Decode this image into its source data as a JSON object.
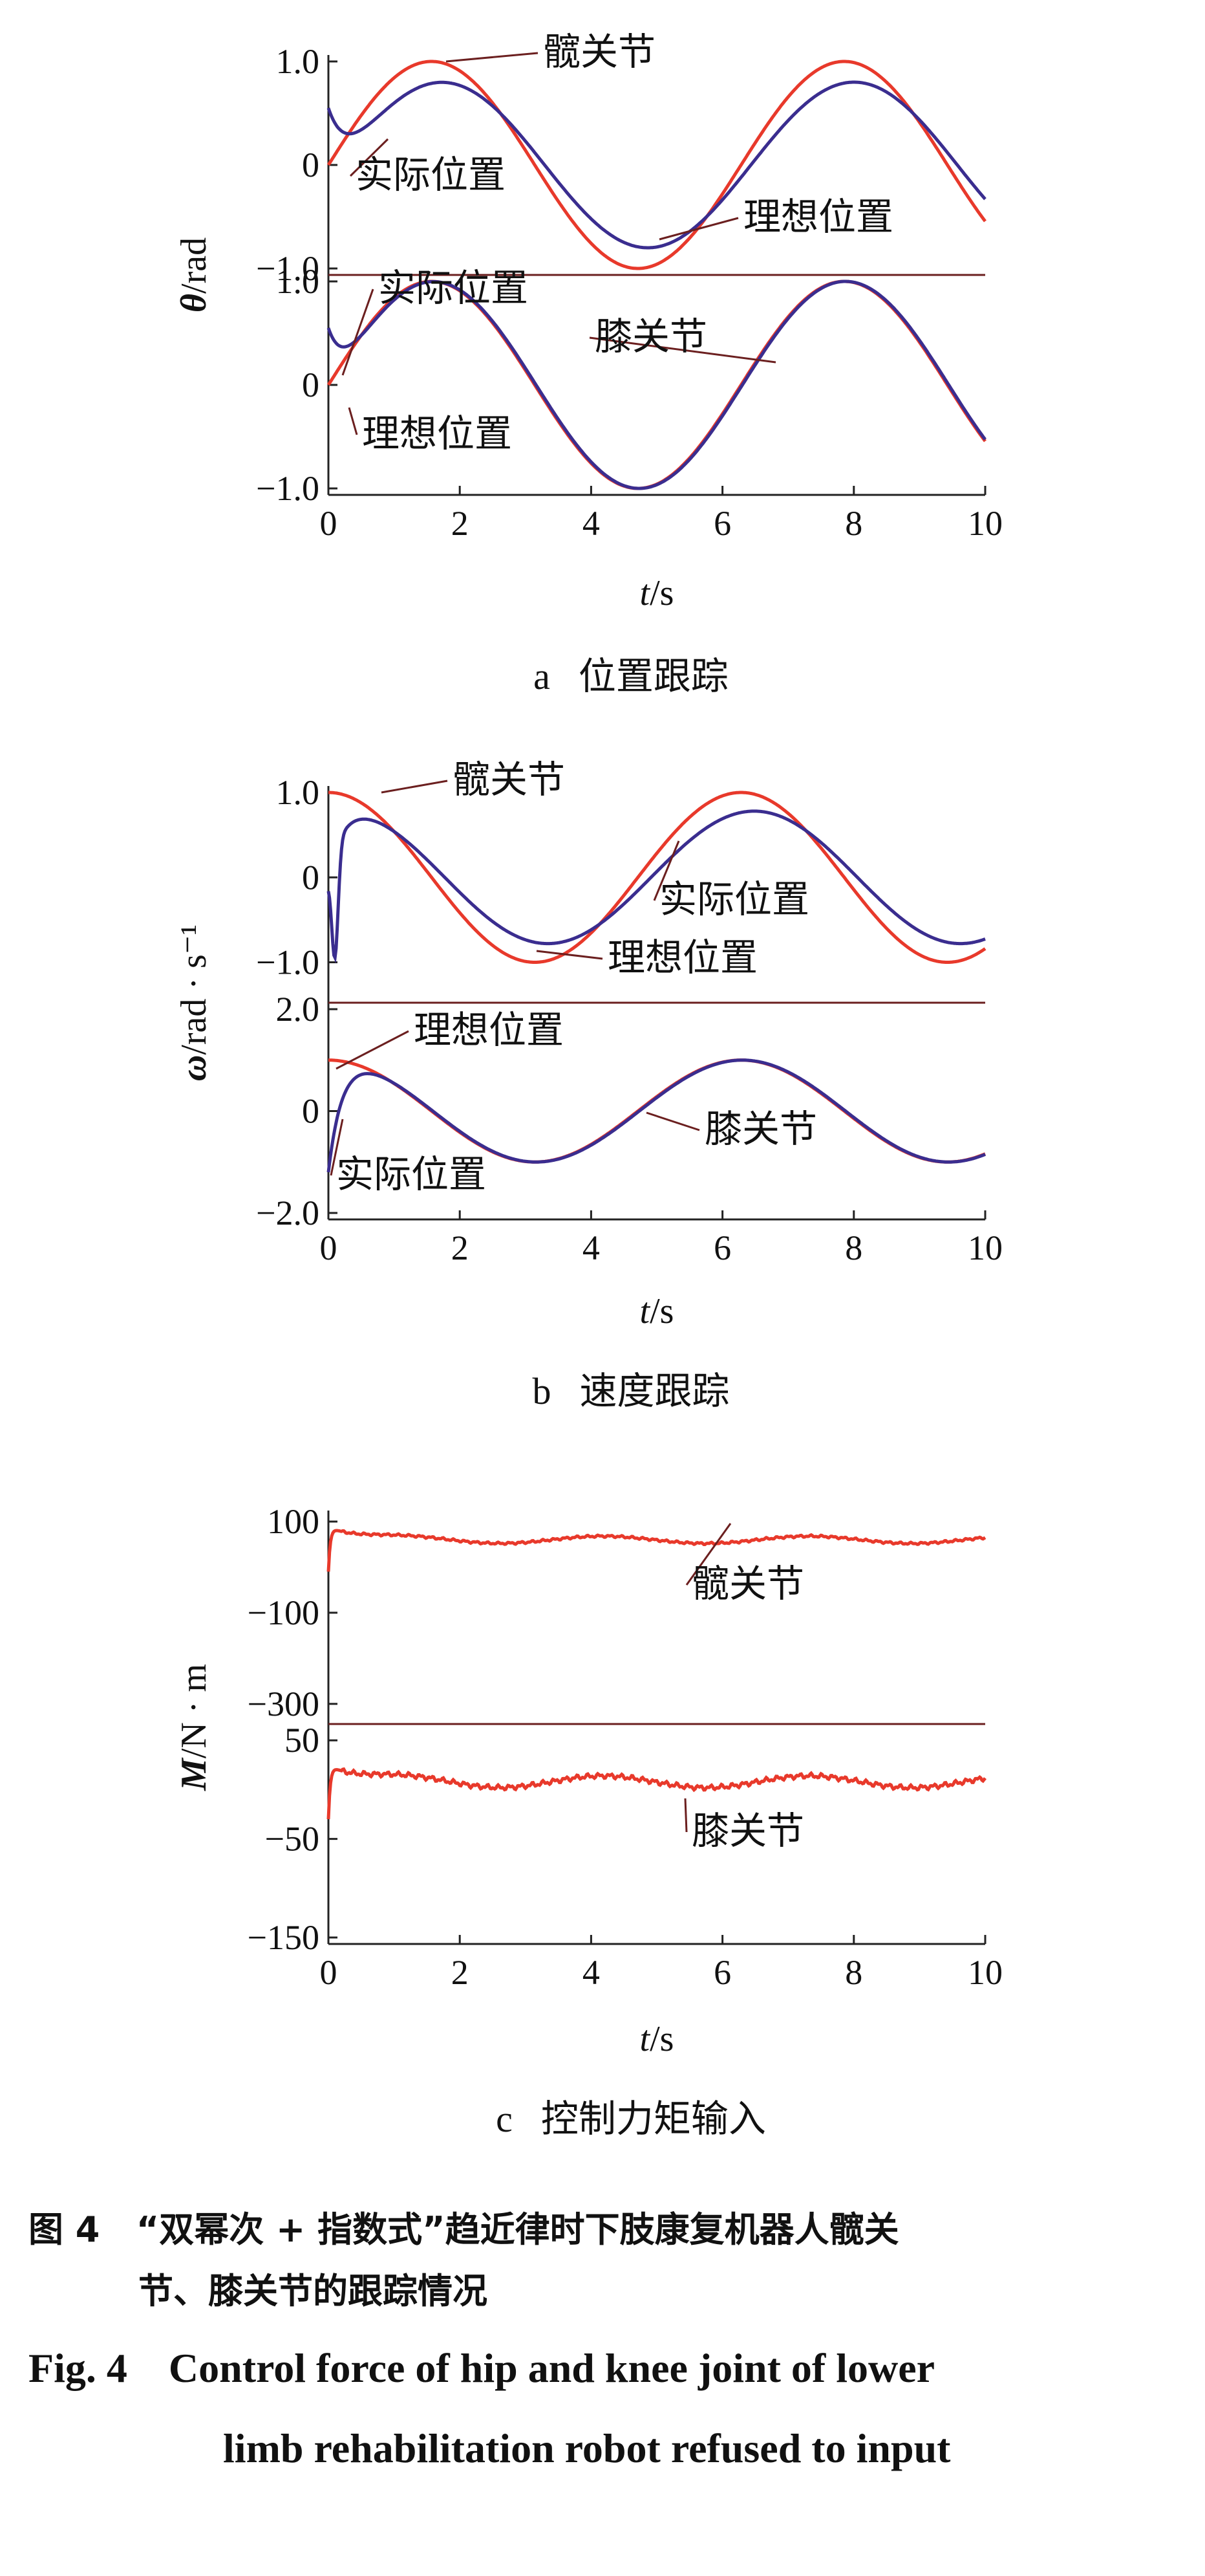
{
  "colors": {
    "ideal": "#e8392b",
    "actual": "#3a2d8f",
    "frame": "#6b1f1f",
    "text": "#111111"
  },
  "chart_data": [
    {
      "id": "a",
      "type": "line",
      "caption_letter": "a",
      "caption_text": "位置跟踪",
      "ylabel_symbol": "θ",
      "ylabel_unit": "/rad",
      "xlabel_symbol": "t",
      "xlabel_unit": "/s",
      "x_ticks": [
        "0",
        "2",
        "4",
        "6",
        "8",
        "10"
      ],
      "xlim": [
        0,
        10
      ],
      "subplots": [
        {
          "ylim": [
            -1.0,
            1.0
          ],
          "y_ticks": [
            "1.0",
            "0",
            "−1.0"
          ],
          "joint_label": "髋关节",
          "series": [
            {
              "role": "ideal",
              "label": "理想位置",
              "formula": "sin",
              "amp": 1.0,
              "offset": 0,
              "init": 0,
              "tau": 0
            },
            {
              "role": "actual",
              "label": "实际位置",
              "formula": "sin",
              "amp": 0.8,
              "offset": 0,
              "phase": 0.15,
              "init": 0.55,
              "tau": 0.35
            }
          ]
        },
        {
          "ylim": [
            -1.0,
            1.0
          ],
          "y_ticks": [
            "1.0",
            "0",
            "−1.0"
          ],
          "joint_label": "膝关节",
          "series": [
            {
              "role": "ideal",
              "label": "理想位置",
              "formula": "sin",
              "amp": 1.0,
              "offset": 0,
              "init": 0,
              "tau": 0
            },
            {
              "role": "actual",
              "label": "实际位置",
              "formula": "sin",
              "amp": 1.0,
              "offset": 0,
              "phase": 0.02,
              "init": 0.55,
              "tau": 0.3
            }
          ]
        }
      ]
    },
    {
      "id": "b",
      "type": "line",
      "caption_letter": "b",
      "caption_text": "速度跟踪",
      "ylabel_symbol": "ω",
      "ylabel_unit": "/rad · s⁻¹",
      "xlabel_symbol": "t",
      "xlabel_unit": "/s",
      "x_ticks": [
        "0",
        "2",
        "4",
        "6",
        "8",
        "10"
      ],
      "xlim": [
        0,
        10
      ],
      "subplots": [
        {
          "ylim": [
            -1.4,
            1.0
          ],
          "y_ticks": [
            "1.0",
            "0",
            "−1.0"
          ],
          "joint_label": "髋关节",
          "series": [
            {
              "role": "ideal",
              "label": "理想位置",
              "formula": "cos",
              "amp": 1.0,
              "offset": 0,
              "init": 1.0,
              "tau": 0
            },
            {
              "role": "actual",
              "label": "实际位置",
              "formula": "cos",
              "amp": 0.78,
              "offset": 0,
              "phase": 0.2,
              "init": 0.0,
              "dip": -1.25,
              "tau": 0.2
            }
          ]
        },
        {
          "ylim": [
            -2.0,
            2.0
          ],
          "y_ticks": [
            "2.0",
            "0",
            "−2.0"
          ],
          "joint_label": "膝关节",
          "series": [
            {
              "role": "ideal",
              "label": "理想位置",
              "formula": "cos",
              "amp": 1.0,
              "offset": 0,
              "init": 1.0,
              "tau": 0
            },
            {
              "role": "actual",
              "label": "实际位置",
              "formula": "cos",
              "amp": 1.0,
              "offset": 0,
              "phase": 0.02,
              "init": -1.2,
              "tau": 0.2
            }
          ]
        }
      ]
    },
    {
      "id": "c",
      "type": "line",
      "caption_letter": "c",
      "caption_text": "控制力矩输入",
      "ylabel_symbol": "M",
      "ylabel_unit": "/N · m",
      "xlabel_symbol": "t",
      "xlabel_unit": "/s",
      "x_ticks": [
        "0",
        "2",
        "4",
        "6",
        "8",
        "10"
      ],
      "xlim": [
        0,
        10
      ],
      "subplots": [
        {
          "ylim": [
            -330,
            110
          ],
          "y_ticks": [
            "100",
            "−100",
            "−300"
          ],
          "y_tick_values": [
            100,
            -100,
            -300
          ],
          "joint_label": "髋关节",
          "series": [
            {
              "role": "ideal",
              "label": "",
              "formula": "torque",
              "base": 60,
              "amp": 8,
              "init": -10,
              "peak": 88,
              "tau": 0.08
            }
          ]
        },
        {
          "ylim": [
            -150,
            60
          ],
          "y_ticks": [
            "50",
            "−50",
            "−150"
          ],
          "y_tick_values": [
            50,
            -50,
            -150
          ],
          "joint_label": "膝关节",
          "series": [
            {
              "role": "ideal",
              "label": "",
              "formula": "torque",
              "base": 8,
              "amp": 6,
              "init": -30,
              "peak": 25,
              "tau": 0.08
            }
          ]
        }
      ]
    }
  ],
  "figure_caption": {
    "cn_line1": "图 4   “双幂次 + 指数式”趋近律时下肢康复机器人髋关",
    "cn_line2": "节、膝关节的跟踪情况",
    "en_line1": "Fig. 4    Control force of hip and knee joint of lower",
    "en_line2": "limb rehabilitation robot refused to input"
  }
}
